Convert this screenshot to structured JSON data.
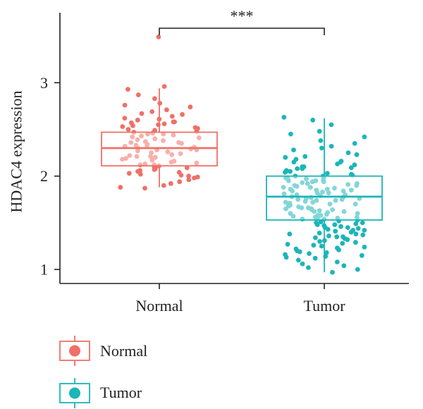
{
  "chart_data": {
    "type": "boxplot",
    "title": "",
    "xlabel": "",
    "ylabel": "HDAC4 expression",
    "ylim": [
      0.85,
      3.75
    ],
    "yticks": [
      1,
      2,
      3
    ],
    "categories": [
      "Normal",
      "Tumor"
    ],
    "significance": {
      "label": "***",
      "between": [
        "Normal",
        "Tumor"
      ]
    },
    "legend": {
      "position": "bottom-left",
      "entries": [
        "Normal",
        "Tumor"
      ]
    },
    "series": [
      {
        "name": "Normal",
        "color": "#F07067",
        "stats": {
          "whisker_low": 1.88,
          "q1": 2.11,
          "median": 2.3,
          "q3": 2.47,
          "whisker_high": 2.94
        },
        "points": [
          3.49,
          2.96,
          2.93,
          2.87,
          2.83,
          2.78,
          2.76,
          2.74,
          2.71,
          2.69,
          2.67,
          2.66,
          2.64,
          2.62,
          2.61,
          2.6,
          2.58,
          2.57,
          2.56,
          2.55,
          2.54,
          2.53,
          2.52,
          2.51,
          2.5,
          2.49,
          2.48,
          2.47,
          2.46,
          2.45,
          2.44,
          2.43,
          2.42,
          2.41,
          2.4,
          2.39,
          2.38,
          2.37,
          2.36,
          2.35,
          2.34,
          2.33,
          2.32,
          2.31,
          2.3,
          2.29,
          2.28,
          2.27,
          2.26,
          2.25,
          2.24,
          2.23,
          2.22,
          2.21,
          2.2,
          2.19,
          2.18,
          2.17,
          2.16,
          2.15,
          2.14,
          2.13,
          2.12,
          2.11,
          2.1,
          2.09,
          2.08,
          2.07,
          2.06,
          2.05,
          2.04,
          2.03,
          2.02,
          2.01,
          2.0,
          1.99,
          1.98,
          1.96,
          1.94,
          1.92,
          1.9,
          1.88,
          1.87,
          2.45,
          2.33,
          2.21,
          2.58,
          2.36,
          2.12,
          2.28
        ]
      },
      {
        "name": "Tumor",
        "color": "#1CB5B8",
        "stats": {
          "whisker_low": 0.97,
          "q1": 1.53,
          "median": 1.78,
          "q3": 2.0,
          "whisker_high": 2.62
        },
        "points": [
          2.63,
          2.6,
          2.55,
          2.48,
          2.45,
          2.42,
          2.38,
          2.35,
          2.32,
          2.3,
          2.28,
          2.25,
          2.23,
          2.21,
          2.2,
          2.18,
          2.16,
          2.15,
          2.13,
          2.12,
          2.1,
          2.09,
          2.08,
          2.06,
          2.05,
          2.04,
          2.03,
          2.02,
          2.01,
          2.0,
          1.99,
          1.98,
          1.97,
          1.96,
          1.95,
          1.94,
          1.93,
          1.92,
          1.91,
          1.9,
          1.89,
          1.88,
          1.87,
          1.86,
          1.85,
          1.84,
          1.83,
          1.82,
          1.81,
          1.8,
          1.79,
          1.78,
          1.77,
          1.76,
          1.75,
          1.74,
          1.73,
          1.72,
          1.71,
          1.7,
          1.69,
          1.68,
          1.67,
          1.66,
          1.65,
          1.64,
          1.63,
          1.62,
          1.61,
          1.6,
          1.59,
          1.58,
          1.57,
          1.56,
          1.55,
          1.54,
          1.53,
          1.52,
          1.51,
          1.5,
          1.49,
          1.48,
          1.47,
          1.46,
          1.45,
          1.44,
          1.43,
          1.42,
          1.41,
          1.4,
          1.39,
          1.38,
          1.37,
          1.36,
          1.35,
          1.34,
          1.33,
          1.32,
          1.31,
          1.3,
          1.29,
          1.28,
          1.27,
          1.26,
          1.25,
          1.24,
          1.23,
          1.22,
          1.21,
          1.2,
          1.19,
          1.18,
          1.17,
          1.16,
          1.15,
          1.14,
          1.13,
          1.12,
          1.1,
          1.08,
          1.06,
          1.04,
          1.02,
          1.0,
          0.97,
          1.95,
          1.85,
          1.75,
          1.65,
          1.55,
          1.9,
          1.7,
          1.6,
          1.8,
          2.0,
          2.1,
          1.5,
          1.45,
          1.88,
          1.72,
          1.68,
          1.62,
          1.58,
          1.82,
          1.92,
          1.78,
          1.74,
          1.66,
          1.56,
          2.05,
          2.15,
          1.35,
          1.42,
          1.98,
          1.86,
          1.76,
          1.64,
          1.54,
          1.84,
          1.94,
          2.08,
          1.48,
          1.38
        ]
      }
    ]
  }
}
